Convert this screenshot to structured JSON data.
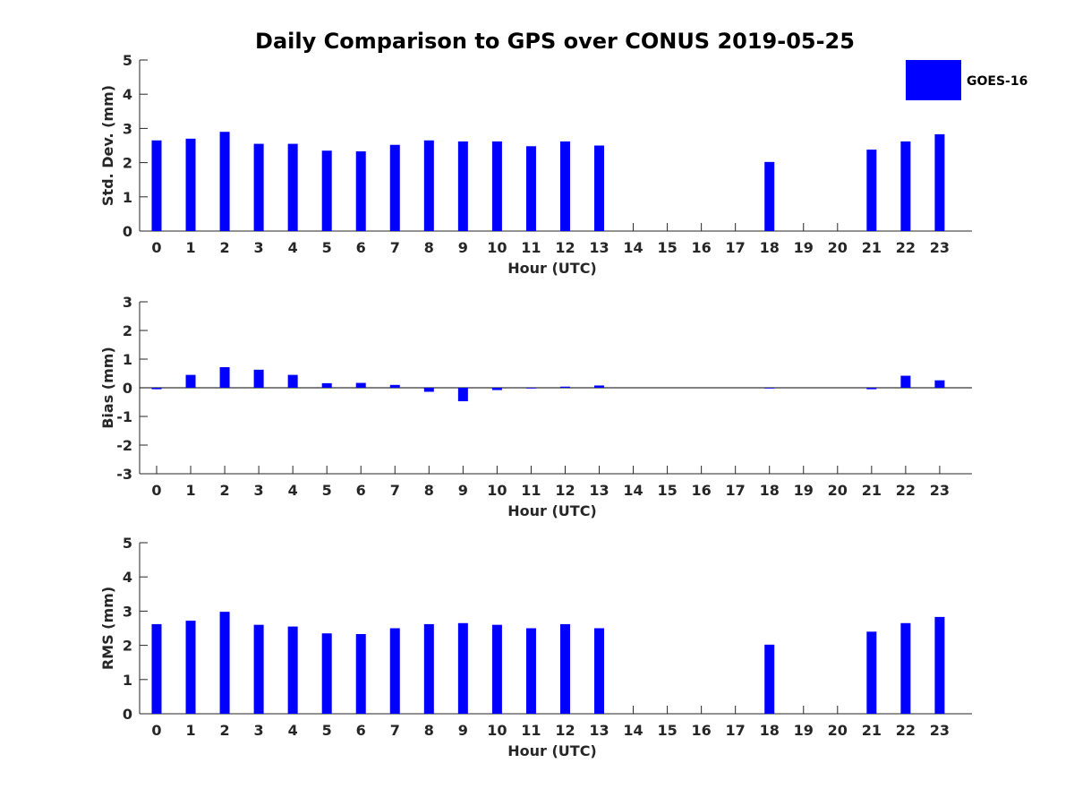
{
  "chart_data": {
    "title": "Daily Comparison to GPS over CONUS 2019-05-25",
    "bar_color": "#0000ff",
    "legend": [
      "GOES-16"
    ],
    "legend_placement": "top-right",
    "categories": [
      "0",
      "1",
      "2",
      "3",
      "4",
      "5",
      "6",
      "7",
      "8",
      "9",
      "10",
      "11",
      "12",
      "13",
      "14",
      "15",
      "16",
      "17",
      "18",
      "19",
      "20",
      "21",
      "22",
      "23"
    ],
    "panels": [
      {
        "type": "bar",
        "series": [
          {
            "name": "GOES-16",
            "values": [
              2.65,
              2.7,
              2.9,
              2.55,
              2.55,
              2.35,
              2.33,
              2.52,
              2.65,
              2.62,
              2.62,
              2.48,
              2.62,
              2.5,
              null,
              null,
              null,
              null,
              2.02,
              null,
              null,
              2.38,
              2.62,
              2.83
            ]
          }
        ],
        "ylabel": "Std. Dev. (mm)",
        "xlabel": "Hour (UTC)",
        "ylim": [
          0,
          5
        ],
        "yticks": [
          "0",
          "1",
          "2",
          "3",
          "4",
          "5"
        ]
      },
      {
        "type": "bar",
        "series": [
          {
            "name": "GOES-16",
            "values": [
              -0.05,
              0.45,
              0.72,
              0.63,
              0.45,
              0.16,
              0.17,
              0.1,
              -0.14,
              -0.47,
              -0.08,
              -0.02,
              0.04,
              0.08,
              null,
              null,
              null,
              null,
              -0.01,
              null,
              null,
              -0.05,
              0.42,
              0.26
            ]
          }
        ],
        "ylabel": "Bias (mm)",
        "xlabel": "Hour (UTC)",
        "ylim": [
          -3,
          3
        ],
        "yticks": [
          "-3",
          "-2",
          "-1",
          "0",
          "1",
          "2",
          "3"
        ]
      },
      {
        "type": "bar",
        "series": [
          {
            "name": "GOES-16",
            "values": [
              2.62,
              2.72,
              2.98,
              2.6,
              2.55,
              2.35,
              2.33,
              2.5,
              2.62,
              2.65,
              2.6,
              2.5,
              2.62,
              2.5,
              null,
              null,
              null,
              null,
              2.02,
              null,
              null,
              2.4,
              2.65,
              2.83
            ]
          }
        ],
        "ylabel": "RMS (mm)",
        "xlabel": "Hour (UTC)",
        "ylim": [
          0,
          5
        ],
        "yticks": [
          "0",
          "1",
          "2",
          "3",
          "4",
          "5"
        ]
      }
    ]
  }
}
